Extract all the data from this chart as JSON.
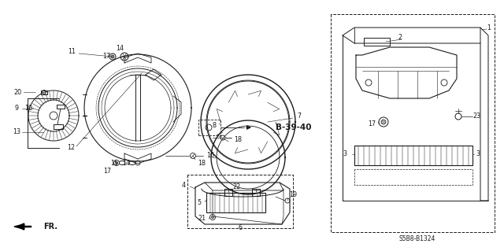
{
  "bg_color": "#ffffff",
  "line_color": "#1a1a1a",
  "bold_label": "B-39-40",
  "diagram_code": "S5B8-B1324",
  "fr_label": "FR.",
  "title_color": "#000000"
}
